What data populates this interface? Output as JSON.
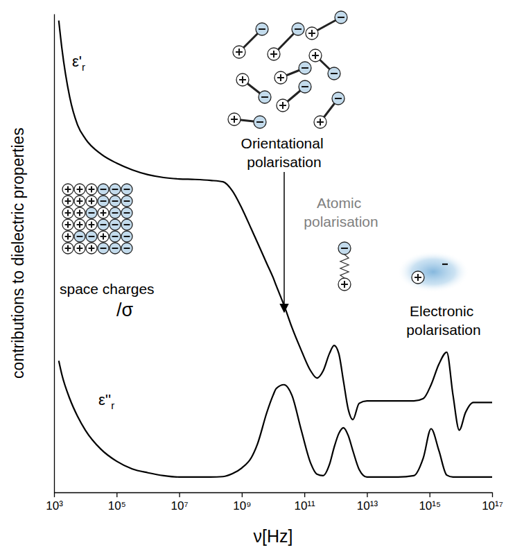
{
  "chart_data": {
    "type": "line",
    "x_label": "ν[Hz]",
    "y_label": "contributions to dielectric properties",
    "log": "x",
    "grid": false,
    "tick_labels": "x",
    "xlim": [
      1000.0,
      1e+17
    ],
    "xticks": [
      {
        "value": 1000.0,
        "label": "10³"
      },
      {
        "value": 100000.0,
        "label": "10⁵"
      },
      {
        "value": 10000000.0,
        "label": "10⁷"
      },
      {
        "value": 1000000000.0,
        "label": "10⁹"
      },
      {
        "value": 100000000000.0,
        "label": "10¹¹"
      },
      {
        "value": 10000000000000.0,
        "label": "10¹³"
      },
      {
        "value": 1000000000000000.0,
        "label": "10¹⁵"
      },
      {
        "value": 1e+17,
        "label": "10¹⁷"
      }
    ],
    "ylim": [
      0,
      100
    ],
    "yticks": [],
    "x": [
      1413.0,
      1778.0,
      3162.0,
      5623.0,
      10000.0,
      31620.0,
      100000.0,
      316200.0,
      1000000.0,
      3162000.0,
      10000000.0,
      31620000.0,
      100000000.0,
      251200000.0,
      501200000.0,
      1000000000.0,
      1995000000.0,
      3162000000.0,
      6310000000.0,
      10000000000.0,
      12590000000.0,
      22390000000.0,
      39810000000.0,
      79430000000.0,
      158500000000.0,
      251200000000.0,
      398100000000.0,
      631000000000.0,
      891300000000.0,
      1259000000000.0,
      1778000000000.0,
      2512000000000.0,
      3548000000000.0,
      5623000000000.0,
      10000000000000.0,
      31620000000000.0,
      100000000000000.0,
      316200000000000.0,
      631000000000000.0,
      1122000000000000.0,
      1995000000000000.0,
      3548000000000000.0,
      5623000000000000.0,
      8913000000000000.0,
      1.413e+16,
      2.512e+16,
      1e+17
    ],
    "series": [
      {
        "name": "ε'r",
        "color": "#000000",
        "values": [
          98.6,
          92.8,
          82.6,
          76.8,
          73.9,
          70.7,
          68.8,
          67.4,
          66.4,
          65.8,
          65.5,
          65.4,
          65.2,
          64.9,
          63.0,
          59.4,
          55.1,
          52.2,
          47.8,
          44.9,
          43.2,
          39.1,
          34.5,
          29.7,
          25.4,
          23.9,
          25.4,
          29.0,
          30.7,
          29.0,
          23.2,
          17.4,
          15.2,
          18.6,
          19.1,
          19.1,
          19.1,
          19.1,
          19.6,
          22.5,
          26.8,
          29.3,
          20.3,
          13.0,
          16.7,
          18.8,
          18.8
        ]
      },
      {
        "name": "ε''r",
        "color": "#000000",
        "values": [
          27.5,
          24.6,
          19.6,
          15.9,
          13.0,
          9.0,
          6.5,
          4.9,
          4.1,
          3.5,
          3.2,
          3.2,
          3.2,
          3.3,
          3.9,
          5.1,
          7.2,
          10.1,
          16.7,
          20.3,
          21.7,
          22.5,
          20.3,
          13.0,
          6.1,
          3.8,
          3.5,
          5.8,
          9.4,
          12.3,
          13.5,
          11.9,
          8.7,
          4.8,
          3.2,
          3.2,
          3.2,
          3.5,
          7.2,
          13.3,
          8.7,
          3.6,
          3.2,
          3.2,
          3.2,
          3.2,
          3.2
        ]
      }
    ],
    "annotations": [
      "space charges",
      "/σ",
      "Orientational polarisation",
      "Atomic polarisation",
      "Electronic polarisation"
    ]
  }
}
